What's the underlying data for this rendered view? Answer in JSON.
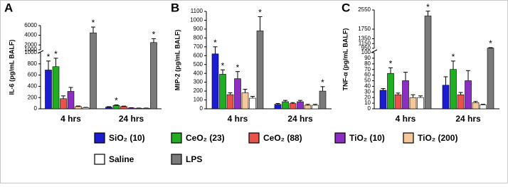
{
  "legend": [
    {
      "name": "SiO₂ (10)",
      "color": "#1c1cd0"
    },
    {
      "name": "CeO₂ (23)",
      "color": "#21ad21"
    },
    {
      "name": "CeO₂ (88)",
      "color": "#e8524a"
    },
    {
      "name": "TiO₂ (10)",
      "color": "#8a2fc2"
    },
    {
      "name": "TiO₂ (200)",
      "color": "#f5c89a"
    },
    {
      "name": "Saline",
      "color": "#ffffff"
    },
    {
      "name": "LPS",
      "color": "#7a7a7a"
    }
  ],
  "chart_data": [
    {
      "type": "bar",
      "panel": "A",
      "ylabel": "IL-6 (pg/mL BALF)",
      "categories": [
        "4 hrs",
        "24 hrs"
      ],
      "axis_segments": [
        {
          "ylim": [
            0,
            1000
          ],
          "yticks": [
            0,
            200,
            400,
            600,
            800,
            1000
          ]
        },
        {
          "ylim": [
            1000,
            6000
          ],
          "yticks": [
            1000,
            2000,
            4000,
            6000
          ]
        }
      ],
      "series": [
        {
          "values": [
            690,
            30
          ],
          "errors": [
            160,
            8
          ],
          "annotations": [
            "*",
            null
          ]
        },
        {
          "values": [
            750,
            60
          ],
          "errors": [
            150,
            10
          ],
          "annotations": [
            "*",
            "*"
          ]
        },
        {
          "values": [
            180,
            40
          ],
          "errors": [
            50,
            8
          ],
          "annotations": [
            null,
            null
          ]
        },
        {
          "values": [
            310,
            15
          ],
          "errors": [
            70,
            4
          ],
          "annotations": [
            null,
            null
          ]
        },
        {
          "values": [
            40,
            10
          ],
          "errors": [
            10,
            3
          ],
          "annotations": [
            null,
            null
          ]
        },
        {
          "values": [
            20,
            10
          ],
          "errors": [
            5,
            3
          ],
          "annotations": [
            null,
            null
          ]
        },
        {
          "values": [
            4500,
            2500
          ],
          "errors": [
            1200,
            800
          ],
          "annotations": [
            "*",
            "*"
          ]
        }
      ]
    },
    {
      "type": "bar",
      "panel": "B",
      "ylabel": "MIP-2 (pg/mL BALF)",
      "categories": [
        "4 hrs",
        "24 hrs"
      ],
      "axis_segments": [
        {
          "ylim": [
            0,
            1100
          ],
          "yticks": [
            0,
            100,
            200,
            300,
            400,
            500,
            600,
            700,
            800,
            900,
            1000,
            1100
          ]
        }
      ],
      "series": [
        {
          "values": [
            620,
            50
          ],
          "errors": [
            80,
            10
          ],
          "annotations": [
            "*",
            null
          ]
        },
        {
          "values": [
            390,
            80
          ],
          "errors": [
            50,
            15
          ],
          "annotations": [
            "*",
            null
          ]
        },
        {
          "values": [
            160,
            60
          ],
          "errors": [
            20,
            10
          ],
          "annotations": [
            null,
            null
          ]
        },
        {
          "values": [
            340,
            80
          ],
          "errors": [
            80,
            15
          ],
          "annotations": [
            "*",
            null
          ]
        },
        {
          "values": [
            180,
            40
          ],
          "errors": [
            40,
            10
          ],
          "annotations": [
            null,
            null
          ]
        },
        {
          "values": [
            120,
            40
          ],
          "errors": [
            20,
            10
          ],
          "annotations": [
            null,
            null
          ]
        },
        {
          "values": [
            880,
            200
          ],
          "errors": [
            160,
            50
          ],
          "annotations": [
            "*",
            "*"
          ]
        }
      ]
    },
    {
      "type": "bar",
      "panel": "C",
      "ylabel": "TNF-α (pg/mL BALF)",
      "categories": [
        "4 hrs",
        "24 hrs"
      ],
      "axis_segments": [
        {
          "ylim": [
            0,
            100
          ],
          "yticks": [
            0,
            10,
            20,
            30,
            40,
            50,
            60,
            70,
            80,
            90,
            100
          ]
        },
        {
          "ylim": [
            950,
            2550
          ],
          "yticks": [
            950,
            1150,
            1350,
            1750,
            2550
          ]
        }
      ],
      "series": [
        {
          "values": [
            33,
            42
          ],
          "errors": [
            3,
            15
          ],
          "annotations": [
            null,
            null
          ]
        },
        {
          "values": [
            63,
            70
          ],
          "errors": [
            10,
            15
          ],
          "annotations": [
            "*",
            "*"
          ]
        },
        {
          "values": [
            25,
            25
          ],
          "errors": [
            3,
            4
          ],
          "annotations": [
            null,
            null
          ]
        },
        {
          "values": [
            50,
            50
          ],
          "errors": [
            15,
            18
          ],
          "annotations": [
            null,
            null
          ]
        },
        {
          "values": [
            20,
            11
          ],
          "errors": [
            5,
            2
          ],
          "annotations": [
            null,
            null
          ]
        },
        {
          "values": [
            20,
            7
          ],
          "errors": [
            3,
            1
          ],
          "annotations": [
            null,
            null
          ]
        },
        {
          "values": [
            2300,
            960
          ],
          "errors": [
            200,
            20
          ],
          "annotations": [
            "*",
            "*"
          ]
        }
      ]
    }
  ]
}
